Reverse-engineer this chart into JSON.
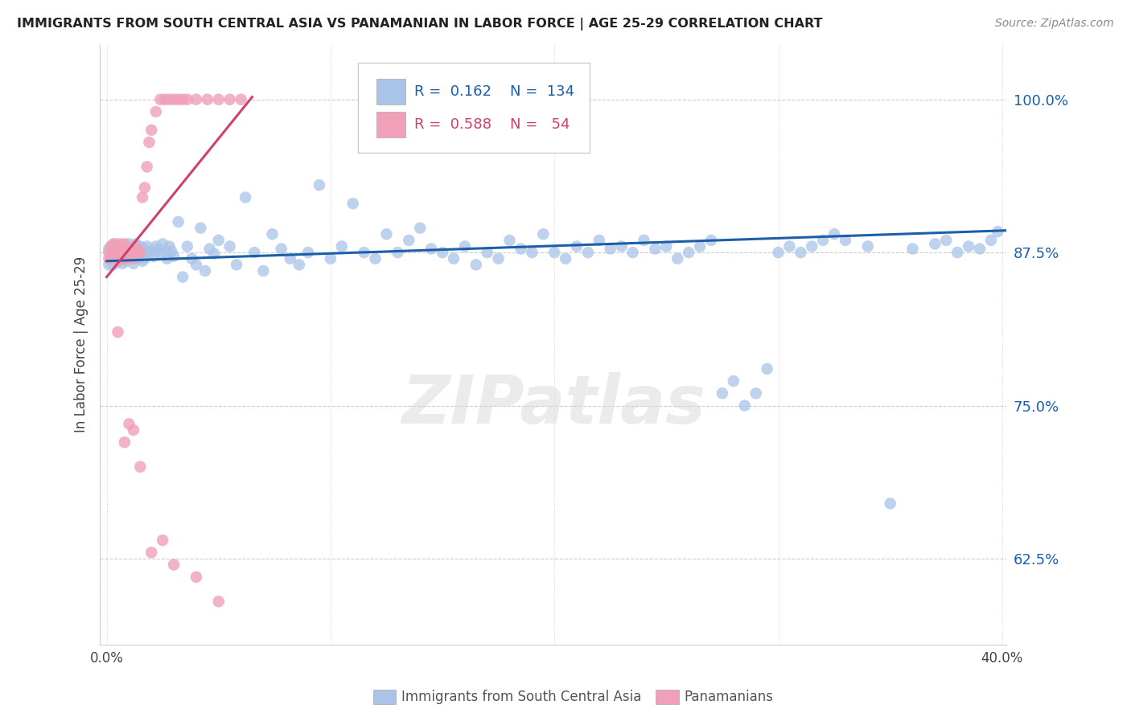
{
  "title": "IMMIGRANTS FROM SOUTH CENTRAL ASIA VS PANAMANIAN IN LABOR FORCE | AGE 25-29 CORRELATION CHART",
  "source": "Source: ZipAtlas.com",
  "ylabel": "In Labor Force | Age 25-29",
  "ytick_labels": [
    "62.5%",
    "75.0%",
    "87.5%",
    "100.0%"
  ],
  "ytick_values": [
    0.625,
    0.75,
    0.875,
    1.0
  ],
  "xlim": [
    -0.003,
    0.402
  ],
  "ylim": [
    0.555,
    1.045
  ],
  "legend_blue_r": "0.162",
  "legend_blue_n": "134",
  "legend_pink_r": "0.588",
  "legend_pink_n": "54",
  "legend_label_blue": "Immigrants from South Central Asia",
  "legend_label_pink": "Panamanians",
  "blue_scatter_color": "#aac4e8",
  "blue_line_color": "#1a5fa8",
  "pink_scatter_color": "#f0a0b8",
  "pink_line_color": "#d04068",
  "watermark_color": "#d8d8d8",
  "blue_line_x0": 0.0,
  "blue_line_x1": 0.402,
  "blue_line_y0": 0.868,
  "blue_line_y1": 0.893,
  "pink_line_x0": 0.0,
  "pink_line_x1": 0.065,
  "pink_line_y0": 0.855,
  "pink_line_y1": 1.002
}
